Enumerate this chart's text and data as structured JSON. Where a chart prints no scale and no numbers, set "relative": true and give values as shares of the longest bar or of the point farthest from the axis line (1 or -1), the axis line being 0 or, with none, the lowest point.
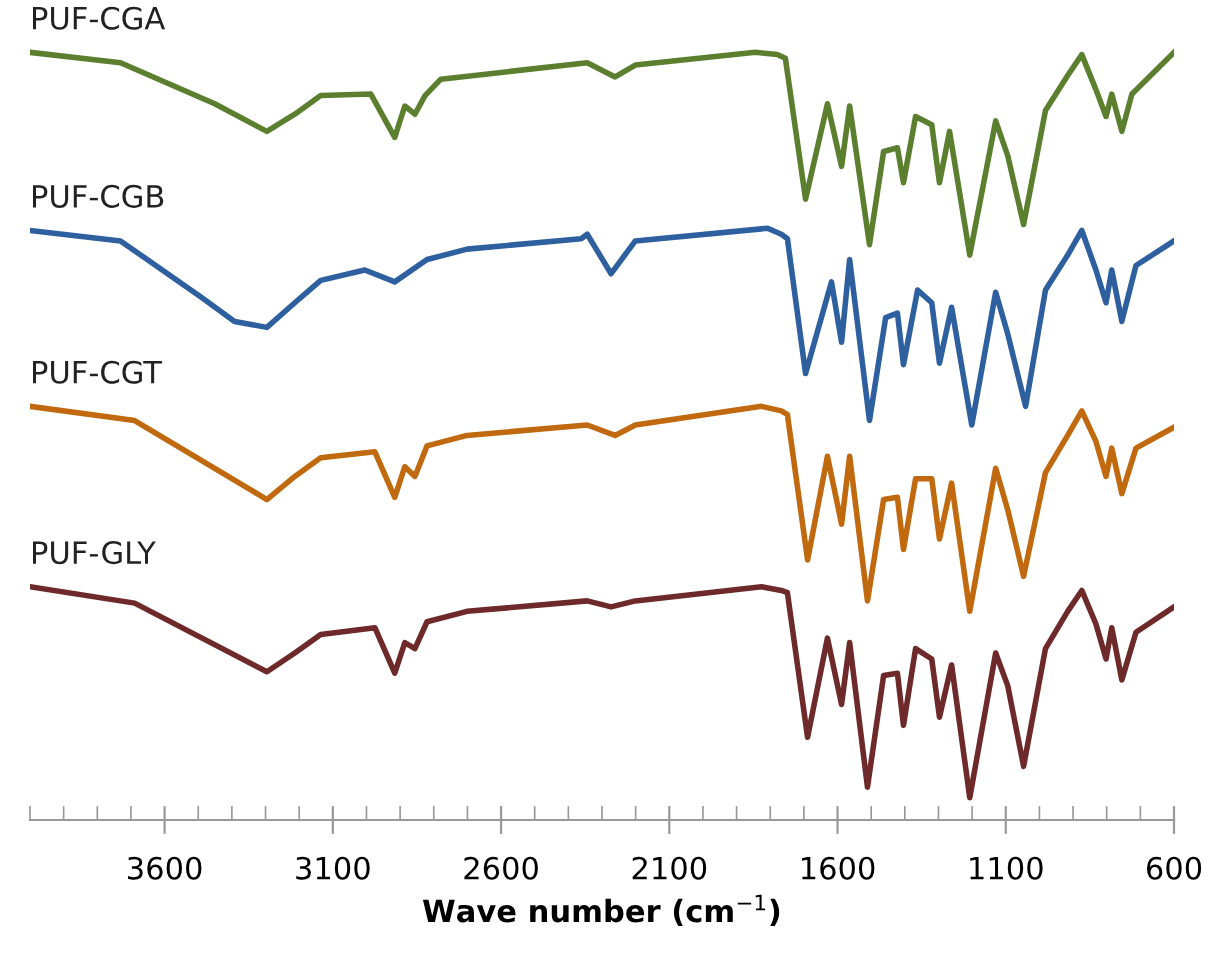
{
  "chart_data": {
    "type": "line",
    "relative": true,
    "xlabel": "Wave number (cm$^{−1}$)",
    "xlim": [
      4000,
      600
    ],
    "xticks": [
      {
        "value": 4000,
        "label": null
      },
      {
        "value": 3900,
        "label": null
      },
      {
        "value": 3800,
        "label": null
      },
      {
        "value": 3700,
        "label": null
      },
      3600,
      {
        "value": 3500,
        "label": null
      },
      {
        "value": 3400,
        "label": null
      },
      {
        "value": 3300,
        "label": null
      },
      {
        "value": 3200,
        "label": null
      },
      3100,
      {
        "value": 3000,
        "label": null
      },
      {
        "value": 2900,
        "label": null
      },
      {
        "value": 2800,
        "label": null
      },
      {
        "value": 2700,
        "label": null
      },
      2600,
      {
        "value": 2500,
        "label": null
      },
      {
        "value": 2400,
        "label": null
      },
      {
        "value": 2300,
        "label": null
      },
      {
        "value": 2200,
        "label": null
      },
      2100,
      {
        "value": 2000,
        "label": null
      },
      {
        "value": 1900,
        "label": null
      },
      {
        "value": 1800,
        "label": null
      },
      {
        "value": 1700,
        "label": null
      },
      1600,
      {
        "value": 1500,
        "label": null
      },
      {
        "value": 1400,
        "label": null
      },
      {
        "value": 1300,
        "label": null
      },
      {
        "value": 1200,
        "label": null
      },
      1100,
      {
        "value": 1000,
        "label": null
      },
      {
        "value": 900,
        "label": null
      },
      {
        "value": 800,
        "label": null
      },
      {
        "value": 700,
        "label": null
      },
      600
    ],
    "grid": false,
    "legend": false,
    "marker": "none",
    "line_style": "solid",
    "series": [
      {
        "name": "PUF-CGA",
        "color": "#5b7f2f",
        "x": [
          4000,
          3731,
          3451,
          3296,
          3213,
          3136,
          2987,
          2916,
          2886,
          2856,
          2826,
          2779,
          2344,
          2261,
          2201,
          1844,
          1779,
          1755,
          1695,
          1630,
          1588,
          1564,
          1505,
          1463,
          1422,
          1404,
          1368,
          1320,
          1297,
          1267,
          1207,
          1130,
          1094,
          1047,
          982,
          916,
          874,
          832,
          802,
          785,
          755,
          725,
          600
        ],
        "values": [
          1.0,
          0.986,
          0.931,
          0.894,
          0.917,
          0.942,
          0.944,
          0.886,
          0.928,
          0.917,
          0.942,
          0.964,
          0.986,
          0.967,
          0.983,
          1.0,
          0.997,
          0.992,
          0.803,
          0.931,
          0.847,
          0.928,
          0.742,
          0.867,
          0.872,
          0.825,
          0.914,
          0.903,
          0.825,
          0.894,
          0.728,
          0.908,
          0.861,
          0.769,
          0.922,
          0.969,
          0.997,
          0.95,
          0.914,
          0.944,
          0.894,
          0.944,
          1.0
        ]
      },
      {
        "name": "PUF-CGB",
        "color": "#2e5f9e",
        "x": [
          4000,
          3731,
          3493,
          3392,
          3296,
          3213,
          3136,
          3005,
          2916,
          2820,
          2701,
          2362,
          2344,
          2273,
          2201,
          1808,
          1767,
          1749,
          1695,
          1618,
          1588,
          1564,
          1505,
          1457,
          1422,
          1404,
          1362,
          1320,
          1297,
          1261,
          1201,
          1130,
          1094,
          1041,
          982,
          916,
          874,
          832,
          802,
          785,
          755,
          713,
          600
        ],
        "values": [
          0.761,
          0.747,
          0.672,
          0.639,
          0.631,
          0.664,
          0.694,
          0.708,
          0.692,
          0.722,
          0.736,
          0.75,
          0.756,
          0.703,
          0.747,
          0.764,
          0.756,
          0.75,
          0.569,
          0.692,
          0.611,
          0.722,
          0.506,
          0.644,
          0.65,
          0.581,
          0.681,
          0.664,
          0.583,
          0.658,
          0.5,
          0.678,
          0.622,
          0.525,
          0.681,
          0.728,
          0.761,
          0.708,
          0.664,
          0.708,
          0.639,
          0.714,
          0.747
        ]
      },
      {
        "name": "PUF-CGT",
        "color": "#c0690f",
        "x": [
          4000,
          3689,
          3296,
          3213,
          3136,
          2975,
          2916,
          2886,
          2856,
          2820,
          2701,
          2344,
          2261,
          2201,
          1826,
          1767,
          1749,
          1689,
          1630,
          1588,
          1564,
          1511,
          1463,
          1422,
          1404,
          1368,
          1320,
          1297,
          1261,
          1207,
          1130,
          1094,
          1047,
          982,
          916,
          874,
          832,
          802,
          785,
          755,
          713,
          600
        ],
        "values": [
          0.525,
          0.506,
          0.4,
          0.431,
          0.456,
          0.464,
          0.403,
          0.444,
          0.431,
          0.472,
          0.486,
          0.5,
          0.486,
          0.5,
          0.525,
          0.519,
          0.514,
          0.319,
          0.458,
          0.367,
          0.458,
          0.264,
          0.4,
          0.403,
          0.333,
          0.428,
          0.428,
          0.347,
          0.422,
          0.25,
          0.442,
          0.386,
          0.297,
          0.436,
          0.486,
          0.519,
          0.478,
          0.431,
          0.469,
          0.408,
          0.469,
          0.497
        ]
      },
      {
        "name": "PUF-GLY",
        "color": "#6e2a2a",
        "x": [
          4000,
          3689,
          3296,
          3213,
          3136,
          2975,
          2916,
          2886,
          2856,
          2820,
          2701,
          2344,
          2273,
          2201,
          1826,
          1767,
          1749,
          1689,
          1630,
          1588,
          1564,
          1511,
          1463,
          1422,
          1404,
          1368,
          1320,
          1297,
          1261,
          1207,
          1130,
          1094,
          1047,
          982,
          916,
          874,
          832,
          802,
          785,
          755,
          713,
          600
        ],
        "values": [
          0.283,
          0.261,
          0.169,
          0.194,
          0.219,
          0.228,
          0.167,
          0.208,
          0.2,
          0.236,
          0.25,
          0.264,
          0.256,
          0.264,
          0.283,
          0.278,
          0.275,
          0.081,
          0.214,
          0.125,
          0.208,
          0.014,
          0.164,
          0.167,
          0.097,
          0.2,
          0.186,
          0.108,
          0.178,
          0.0,
          0.194,
          0.15,
          0.042,
          0.2,
          0.25,
          0.278,
          0.233,
          0.186,
          0.228,
          0.158,
          0.222,
          0.256
        ]
      }
    ]
  }
}
